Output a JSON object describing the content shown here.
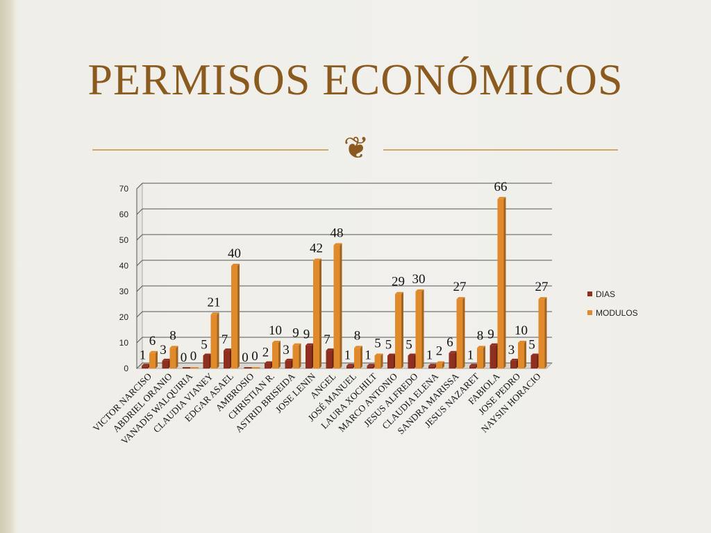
{
  "slide": {
    "title": "PERMISOS ECONÓMICOS",
    "flourish_icon": "ornamental-swash-icon",
    "accent_color": "#8b5a1e",
    "rule_color": "#d2a86a"
  },
  "chart_data": {
    "type": "bar",
    "title": "",
    "xlabel": "",
    "ylabel": "",
    "ylim": [
      0,
      70
    ],
    "yticks": [
      0,
      10,
      20,
      30,
      40,
      50,
      60,
      70
    ],
    "grid": true,
    "legend_position": "right",
    "categories": [
      "VICTOR NARCISO",
      "ABDRIEL ORANIO",
      "VANADIS WALQUIRIA",
      "CLAUDIA VIANEY",
      "EDGAR ASAEL",
      "AMBROSIO",
      "CHRISTIAN R.",
      "ASTRID BRISEIDA",
      "JOSE LENIN",
      "ANGEL",
      "JOSÉ MANUEL",
      "LAURA XOCHILT",
      "MARCO ANTONIO",
      "JESUS ALFREDO",
      "CLAUDIA ELENA",
      "SANDRA MARISSA",
      "JESUS NAZARET",
      "FABIOLA",
      "JOSE PEDRO",
      "NAYSIN HORACIO"
    ],
    "series": [
      {
        "name": "DIAS",
        "color": "#8f2f1f",
        "values": [
          1,
          3,
          0,
          5,
          7,
          0,
          2,
          3,
          9,
          7,
          1,
          1,
          5,
          5,
          1,
          6,
          1,
          9,
          3,
          5
        ]
      },
      {
        "name": "MODULOS",
        "color": "#e08a2c",
        "values": [
          6,
          8,
          0,
          21,
          40,
          0,
          10,
          9,
          42,
          48,
          8,
          5,
          29,
          30,
          2,
          27,
          8,
          66,
          10,
          27
        ]
      }
    ]
  }
}
